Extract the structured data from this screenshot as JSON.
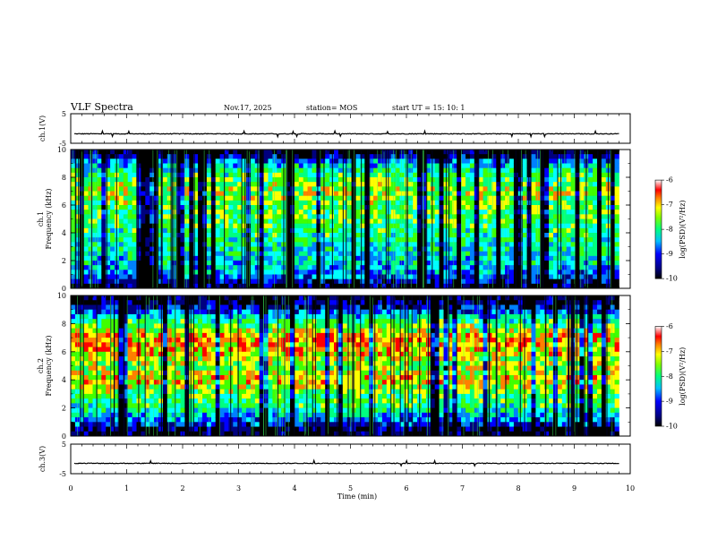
{
  "header": {
    "title": "VLF Spectra",
    "date": "Nov.17, 2025",
    "station": "station= MOS",
    "start_ut": "start  UT =   15: 10: 1"
  },
  "chart_data": [
    {
      "type": "line",
      "name": "ch1_voltage",
      "ylabel": "ch.1(V)",
      "ylim": [
        -5,
        5
      ],
      "y_ticks": [
        "5",
        "-5"
      ],
      "baseline": -1.8,
      "color": "#000000"
    },
    {
      "type": "heatmap",
      "name": "ch1_spectrogram",
      "ylabel_top": "ch.1",
      "ylabel": "Frequency  (kHz)",
      "ylim": [
        0,
        10
      ],
      "y_ticks": [
        "0",
        "2",
        "4",
        "6",
        "8",
        "10"
      ],
      "data_end_min": 9.8,
      "intensity_profile": [
        {
          "freq": 0.25,
          "level": 0.1
        },
        {
          "freq": 1.0,
          "level": 0.35
        },
        {
          "freq": 2.0,
          "level": 0.45
        },
        {
          "freq": 3.0,
          "level": 0.5
        },
        {
          "freq": 4.0,
          "level": 0.55
        },
        {
          "freq": 5.0,
          "level": 0.6
        },
        {
          "freq": 6.0,
          "level": 0.62
        },
        {
          "freq": 7.0,
          "level": 0.7
        },
        {
          "freq": 8.0,
          "level": 0.6
        },
        {
          "freq": 9.0,
          "level": 0.4
        },
        {
          "freq": 9.8,
          "level": 0.05
        }
      ],
      "colorbar": {
        "label": "log(PSD)(V²/Hz)",
        "range": [
          -10,
          -6
        ],
        "ticks": [
          "-6",
          "-7",
          "-8",
          "-9",
          "-10"
        ]
      }
    },
    {
      "type": "heatmap",
      "name": "ch2_spectrogram",
      "ylabel_top": "ch.2",
      "ylabel": "Frequency  (kHz)",
      "ylim": [
        0,
        10
      ],
      "y_ticks": [
        "0",
        "2",
        "4",
        "6",
        "8",
        "10"
      ],
      "data_end_min": 9.8,
      "intensity_profile": [
        {
          "freq": 0.25,
          "level": 0.05
        },
        {
          "freq": 1.0,
          "level": 0.3
        },
        {
          "freq": 2.0,
          "level": 0.55
        },
        {
          "freq": 3.0,
          "level": 0.6
        },
        {
          "freq": 4.0,
          "level": 0.8
        },
        {
          "freq": 5.0,
          "level": 0.65
        },
        {
          "freq": 6.0,
          "level": 0.8
        },
        {
          "freq": 7.0,
          "level": 0.85
        },
        {
          "freq": 8.0,
          "level": 0.6
        },
        {
          "freq": 9.0,
          "level": 0.25
        },
        {
          "freq": 9.8,
          "level": 0.05
        }
      ],
      "colorbar": {
        "label": "log(PSD)(V²/Hz)",
        "range": [
          -10,
          -6
        ],
        "ticks": [
          "-6",
          "-7",
          "-8",
          "-9",
          "-10"
        ]
      }
    },
    {
      "type": "line",
      "name": "ch3_voltage",
      "ylabel": "ch.3(V)",
      "ylim": [
        -5,
        5
      ],
      "y_ticks": [
        "5",
        "-5"
      ],
      "baseline": -1.5,
      "color": "#000000"
    }
  ],
  "x_axis": {
    "label": "Time  (min)",
    "range": [
      0,
      10
    ],
    "ticks": [
      "0",
      "1",
      "2",
      "3",
      "4",
      "5",
      "6",
      "7",
      "8",
      "9",
      "10"
    ]
  },
  "colormap": [
    "#000000",
    "#00007f",
    "#0000ff",
    "#0080ff",
    "#00ffff",
    "#00ff80",
    "#40ff00",
    "#ffff00",
    "#ff8000",
    "#ff0000",
    "#ffffff"
  ]
}
